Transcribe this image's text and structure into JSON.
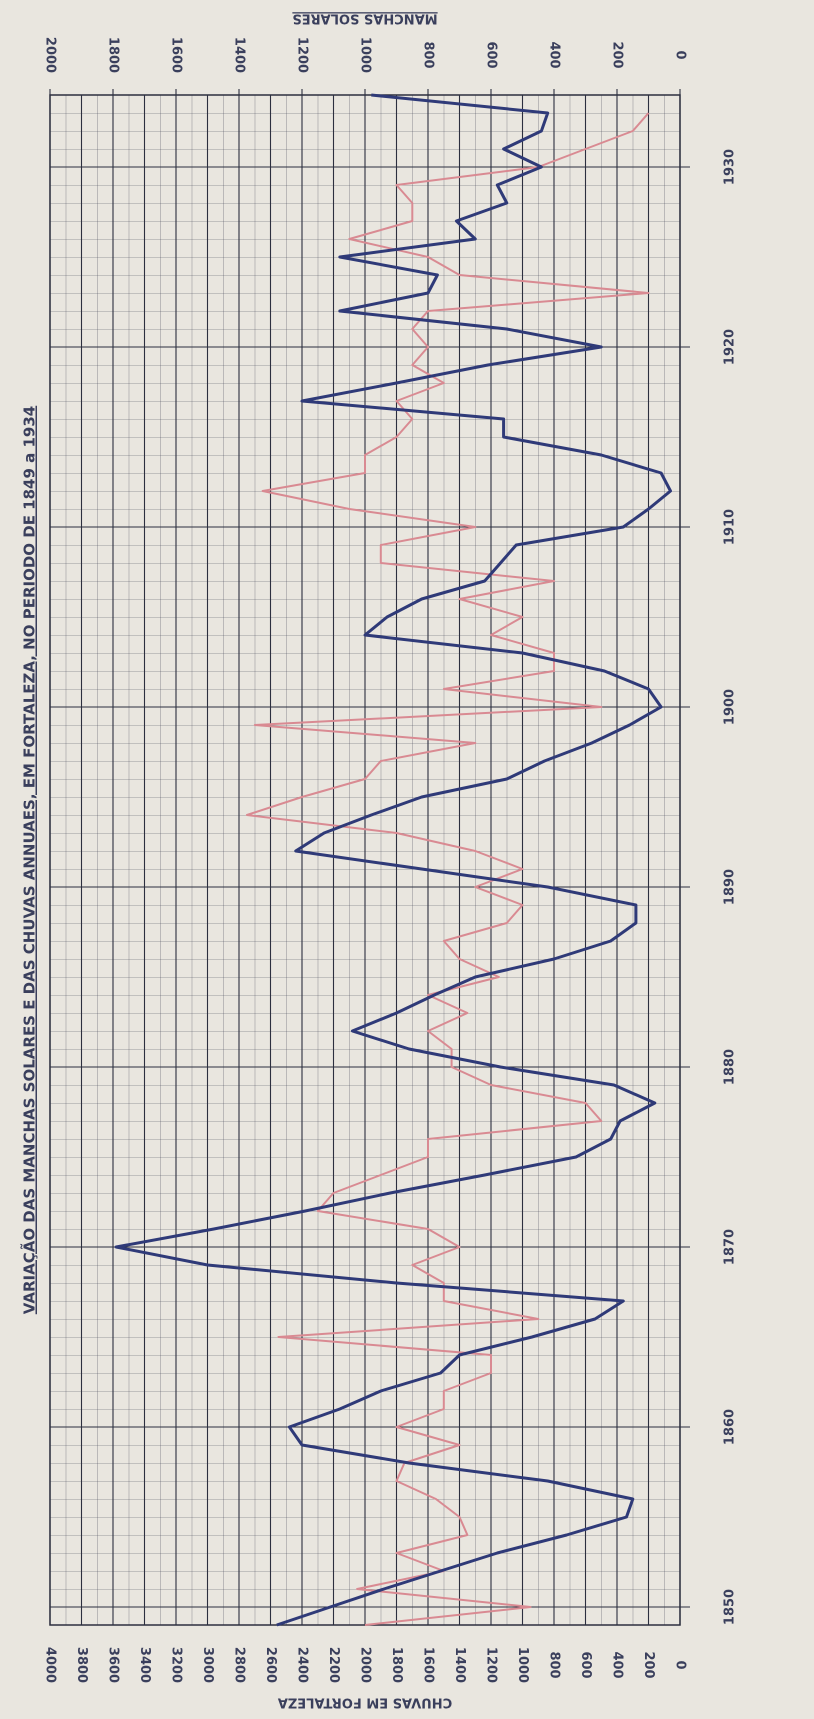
{
  "chart_data": {
    "type": "line",
    "title": "VARIAÇÃO DAS MANCHAS SOLARES E DAS CHUVAS ANNUAES, EM FORTALEZA, NO PERIODO DE 1849 a 1934",
    "y_label": "CHUVAS EM FORTALEZA",
    "y2_label": "MANCHAS SOLARES",
    "x": [
      1849,
      1850,
      1851,
      1852,
      1853,
      1854,
      1855,
      1856,
      1857,
      1858,
      1859,
      1860,
      1861,
      1862,
      1863,
      1864,
      1865,
      1866,
      1867,
      1868,
      1869,
      1870,
      1871,
      1872,
      1873,
      1874,
      1875,
      1876,
      1877,
      1878,
      1879,
      1880,
      1881,
      1882,
      1883,
      1884,
      1885,
      1886,
      1887,
      1888,
      1889,
      1890,
      1891,
      1892,
      1893,
      1894,
      1895,
      1896,
      1897,
      1898,
      1899,
      1900,
      1901,
      1902,
      1903,
      1904,
      1905,
      1906,
      1907,
      1908,
      1909,
      1910,
      1911,
      1912,
      1913,
      1914,
      1915,
      1916,
      1917,
      1918,
      1919,
      1920,
      1921,
      1922,
      1923,
      1924,
      1925,
      1926,
      1927,
      1928,
      1929,
      1930,
      1931,
      1932,
      1933,
      1934
    ],
    "xlim": [
      1849,
      1934
    ],
    "xticks": [
      1850,
      1860,
      1870,
      1880,
      1890,
      1900,
      1910,
      1920,
      1930
    ],
    "ylim": [
      0,
      4000
    ],
    "yticks": [
      0,
      200,
      400,
      600,
      800,
      1000,
      1200,
      1400,
      1600,
      1800,
      2000,
      2200,
      2400,
      2600,
      2800,
      3000,
      3200,
      3400,
      3600,
      3800,
      4000
    ],
    "y2lim": [
      0,
      2000
    ],
    "y2ticks": [
      0,
      200,
      400,
      600,
      800,
      1000,
      1200,
      1400,
      1600,
      1800,
      2000
    ],
    "grid": true,
    "series": [
      {
        "color": "#d98a92",
        "values": [
          2000,
          950,
          2050,
          1500,
          1800,
          1350,
          1400,
          1550,
          1800,
          1750,
          1400,
          1800,
          1500,
          1500,
          1200,
          1200,
          2550,
          900,
          1500,
          1500,
          1700,
          1400,
          1600,
          2300,
          2200,
          1900,
          1600,
          1600,
          500,
          600,
          1200,
          1450,
          1450,
          1600,
          1350,
          1600,
          1150,
          1400,
          1500,
          1100,
          1000,
          1300,
          1000,
          1300,
          1800,
          2750,
          2400,
          2000,
          1900,
          1300,
          2700,
          500,
          1500,
          800,
          800,
          1200,
          1000,
          1400,
          800,
          1900,
          1900,
          1300,
          2100,
          2650,
          2000,
          2000,
          1800,
          1700,
          1800,
          1500,
          1700,
          1600,
          1700,
          1600,
          200,
          1400,
          1600,
          2100,
          1700,
          1700,
          1800,
          900,
          600,
          300,
          200,
          null
        ]
      },
      {
        "color": "#2f3a78",
        "axis": "y2",
        "values": [
          1280,
          1110,
          940,
          760,
          580,
          360,
          170,
          150,
          420,
          860,
          1200,
          1240,
          1080,
          950,
          760,
          700,
          470,
          270,
          180,
          900,
          1500,
          1790,
          1480,
          1190,
          920,
          620,
          330,
          220,
          190,
          80,
          210,
          570,
          860,
          1040,
          900,
          780,
          650,
          400,
          220,
          140,
          140,
          420,
          820,
          1220,
          1130,
          980,
          820,
          550,
          430,
          280,
          160,
          60,
          100,
          240,
          500,
          1000,
          930,
          820,
          620,
          570,
          520,
          180,
          100,
          30,
          60,
          250,
          560,
          560,
          1200,
          900,
          610,
          250,
          550,
          1080,
          800,
          770,
          1080,
          650,
          710,
          550,
          580,
          440,
          560,
          440,
          420,
          980
        ]
      }
    ]
  }
}
